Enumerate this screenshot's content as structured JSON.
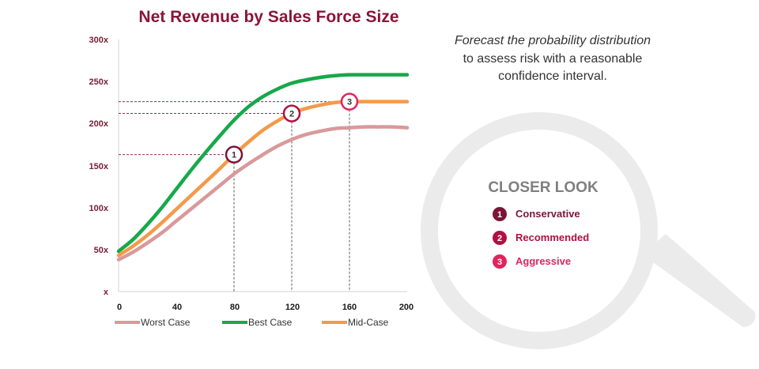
{
  "colors": {
    "title": "#8a1538",
    "worst": "#d9999b",
    "best": "#17a84a",
    "mid": "#f39a4a",
    "maroon": "#7a1538",
    "badge1": "#7a1538",
    "badge2": "#b01040",
    "badge3": "#e0245e",
    "lens": "#f2f2f2",
    "note_italic": "#a0153e",
    "grid_guide": "#7a1538"
  },
  "chart_data": {
    "type": "line",
    "title": "Net Revenue by Sales Force Size",
    "xlim": [
      0,
      200
    ],
    "ylim": [
      0,
      300
    ],
    "x_ticks": [
      "0",
      "40",
      "80",
      "120",
      "160",
      "200"
    ],
    "y_ticks": [
      "x",
      "50x",
      "100x",
      "150x",
      "200x",
      "250x",
      "300x"
    ],
    "grid": false,
    "legend_position": "bottom",
    "x": [
      0,
      10,
      20,
      30,
      40,
      50,
      60,
      70,
      80,
      90,
      100,
      110,
      120,
      130,
      140,
      150,
      160,
      170,
      180,
      190,
      200
    ],
    "series": [
      {
        "name": "Worst Case",
        "key": "worst",
        "values": [
          38,
          47,
          58,
          70,
          84,
          98,
          112,
          126,
          140,
          152,
          163,
          173,
          181,
          187,
          191,
          194,
          195,
          196,
          196,
          196,
          195
        ]
      },
      {
        "name": "Best Case",
        "key": "best",
        "values": [
          48,
          62,
          80,
          100,
          122,
          144,
          165,
          185,
          204,
          220,
          232,
          241,
          248,
          252,
          255,
          257,
          258,
          258,
          258,
          258,
          258
        ]
      },
      {
        "name": "Mid-Case",
        "key": "mid",
        "values": [
          43,
          54,
          67,
          82,
          98,
          114,
          130,
          146,
          163,
          178,
          192,
          203,
          212,
          218,
          222,
          225,
          226,
          226,
          226,
          226,
          226
        ]
      }
    ],
    "markers": [
      {
        "num": "1",
        "x": 80,
        "y": 163
      },
      {
        "num": "2",
        "x": 120,
        "y": 212
      },
      {
        "num": "3",
        "x": 160,
        "y": 226
      }
    ]
  },
  "note": {
    "line1": "Forecast the probability distribution",
    "line2": "to assess risk with a reasonable",
    "line3": "confidence interval."
  },
  "closer_look": {
    "title": "CLOSER LOOK",
    "items": [
      {
        "num": "1",
        "label": "Conservative"
      },
      {
        "num": "2",
        "label": "Recommended"
      },
      {
        "num": "3",
        "label": "Aggressive"
      }
    ]
  }
}
